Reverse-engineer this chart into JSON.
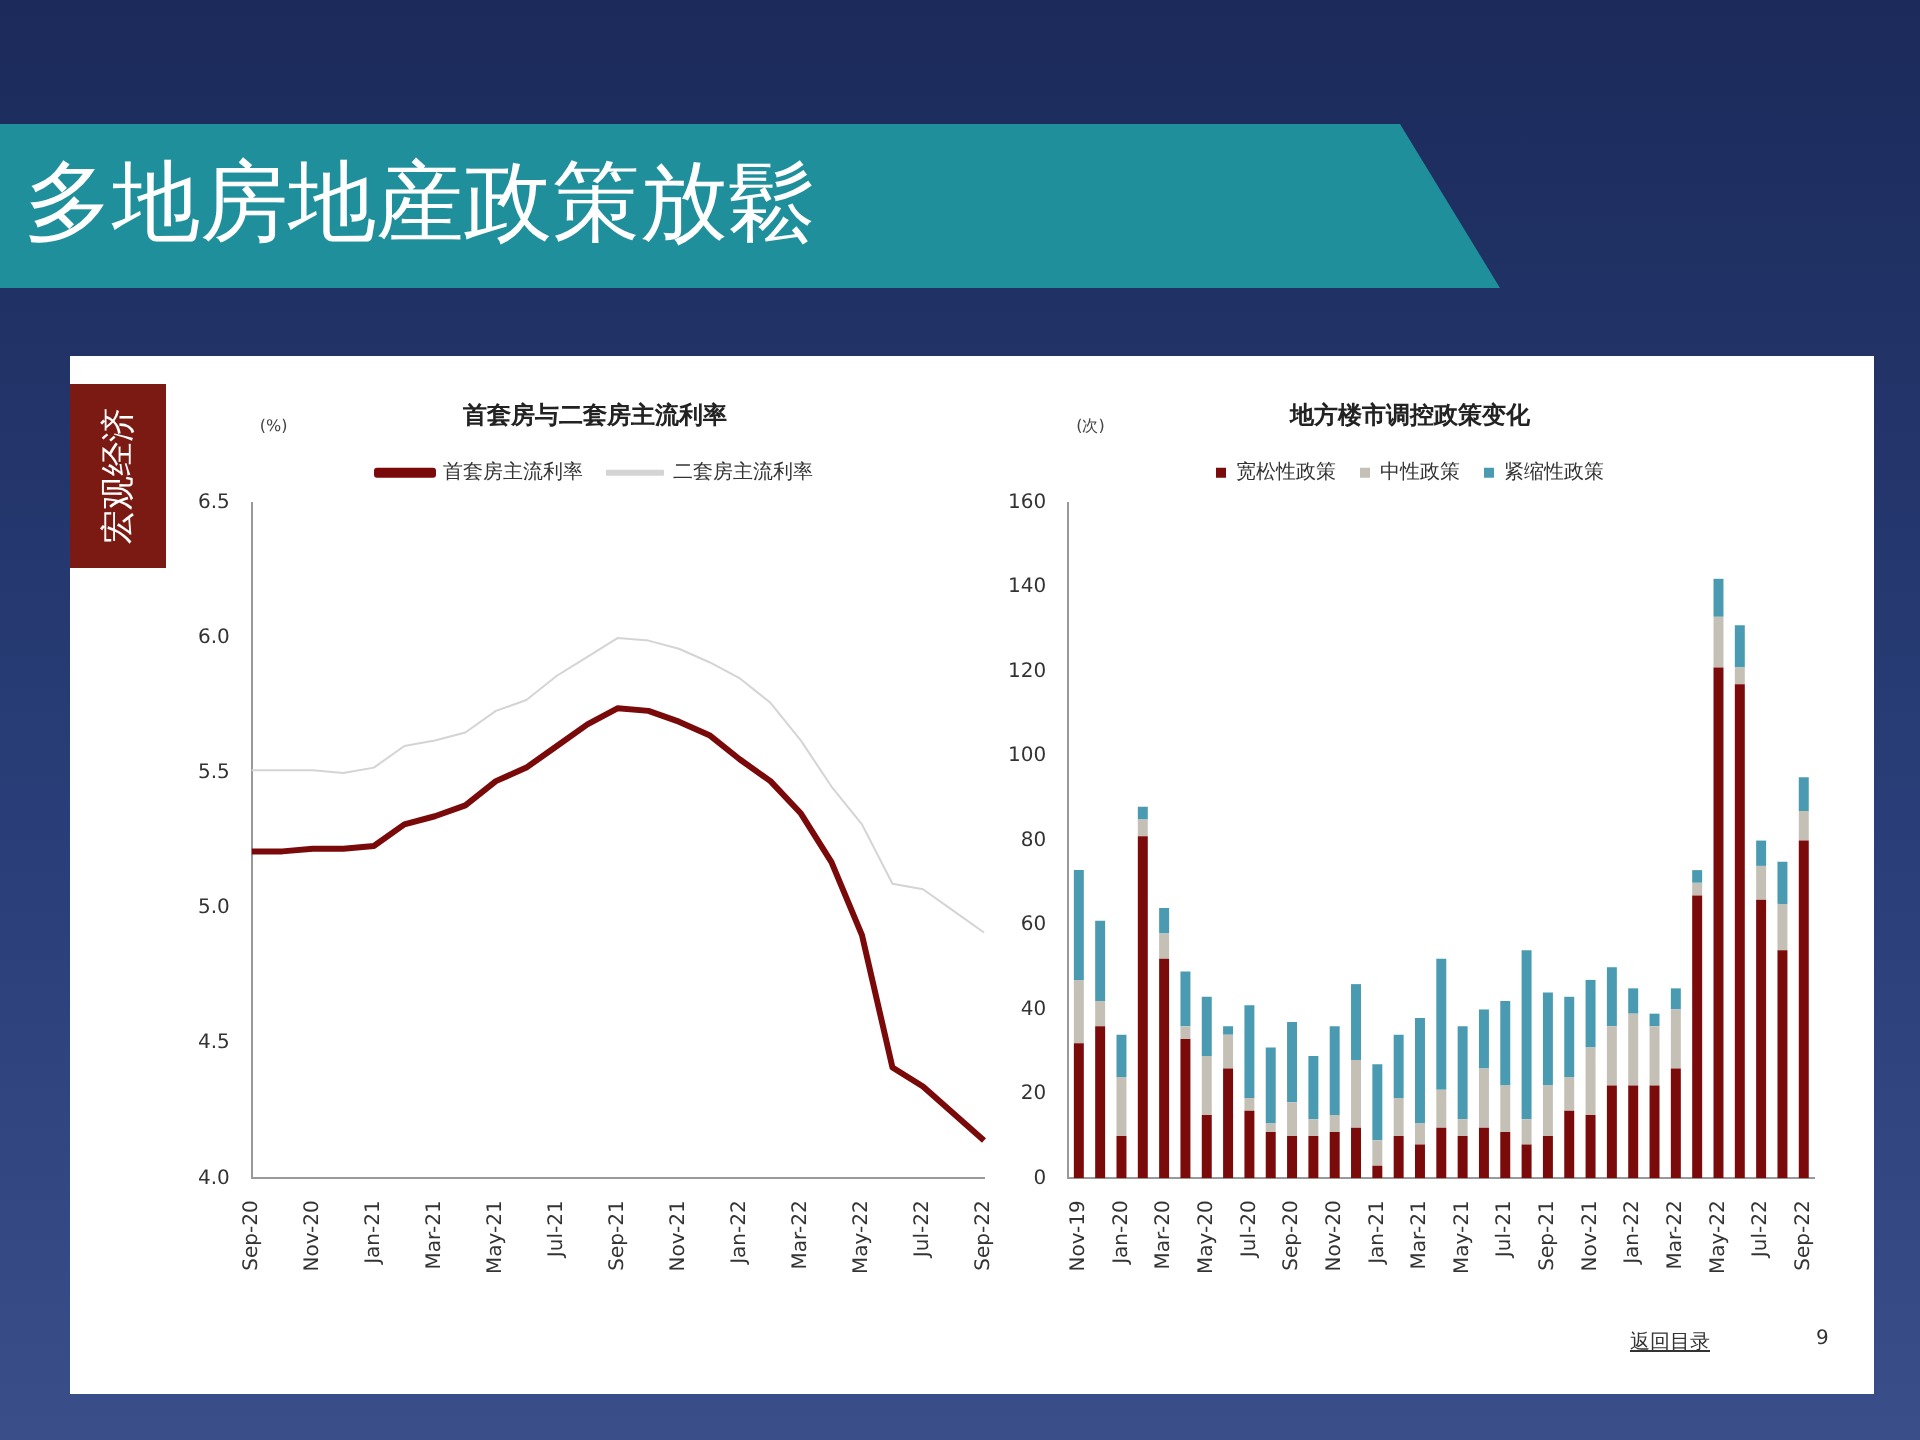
{
  "chart_data": [
    {
      "type": "line",
      "title": "首套房与二套房主流利率",
      "ylabel": "(%)",
      "annotations": [
        "多地房地産政策放鬆",
        "宏观经济"
      ],
      "categories": [
        "Sep-20",
        null,
        "Nov-20",
        null,
        "Jan-21",
        null,
        "Mar-21",
        null,
        "May-21",
        null,
        "Jul-21",
        null,
        "Sep-21",
        null,
        "Nov-21",
        null,
        "Jan-22",
        null,
        "Mar-22",
        null,
        "May-22",
        null,
        "Jul-22",
        null,
        "Sep-22"
      ],
      "series": [
        {
          "name": "首套房主流利率",
          "color": "#7a0a0a",
          "values": [
            5.21,
            5.21,
            5.22,
            5.22,
            5.23,
            5.31,
            5.34,
            5.38,
            5.47,
            5.52,
            5.6,
            5.68,
            5.74,
            5.73,
            5.69,
            5.64,
            5.55,
            5.47,
            5.35,
            5.17,
            4.9,
            4.41,
            4.34,
            4.24,
            4.14
          ]
        },
        {
          "name": "二套房主流利率",
          "color": "#d4d4d4",
          "values": [
            5.51,
            5.51,
            5.51,
            5.5,
            5.52,
            5.6,
            5.62,
            5.65,
            5.73,
            5.77,
            5.86,
            5.93,
            6.0,
            5.99,
            5.96,
            5.91,
            5.85,
            5.76,
            5.62,
            5.45,
            5.31,
            5.09,
            5.07,
            4.99,
            4.91
          ]
        }
      ],
      "ylim": [
        4,
        6.5
      ],
      "yticks": [
        {
          "value": 4,
          "label": "4.0"
        },
        {
          "value": 4.5,
          "label": "4.5"
        },
        {
          "value": 5,
          "label": "5.0"
        },
        {
          "value": 5.5,
          "label": "5.5"
        },
        {
          "value": 6,
          "label": "6.0"
        },
        {
          "value": 6.5,
          "label": "6.5"
        }
      ],
      "grid": false,
      "legend": "top",
      "marker": "none",
      "line_style": "solid"
    },
    {
      "type": "bar",
      "title": "地方楼市调控政策变化",
      "ylabel": "(次)",
      "annotations": [
        "返回目录",
        "9"
      ],
      "categories": [
        "Nov-19",
        null,
        "Jan-20",
        null,
        "Mar-20",
        null,
        "May-20",
        null,
        "Jul-20",
        null,
        "Sep-20",
        null,
        "Nov-20",
        null,
        "Jan-21",
        null,
        "Mar-21",
        null,
        "May-21",
        null,
        "Jul-21",
        null,
        "Sep-21",
        null,
        "Nov-21",
        null,
        "Jan-22",
        null,
        "Mar-22",
        null,
        "May-22",
        null,
        "Jul-22",
        null,
        "Sep-22"
      ],
      "stacked": true,
      "series": [
        {
          "name": "宽松性政策",
          "color": "#7b0a0a",
          "values": [
            32,
            36,
            10,
            81,
            52,
            33,
            15,
            26,
            16,
            11,
            10,
            10,
            11,
            12,
            3,
            10,
            8,
            12,
            10,
            12,
            11,
            8,
            10,
            16,
            15,
            22,
            22,
            22,
            26,
            67,
            121,
            117,
            66,
            54,
            80
          ]
        },
        {
          "name": "中性政策",
          "color": "#c5c0b5",
          "values": [
            15,
            6,
            14,
            4,
            6,
            3,
            14,
            8,
            3,
            2,
            8,
            4,
            4,
            16,
            6,
            9,
            5,
            9,
            4,
            14,
            11,
            6,
            12,
            8,
            16,
            14,
            17,
            14,
            14,
            3,
            12,
            4,
            8,
            11,
            7
          ]
        },
        {
          "name": "紧缩性政策",
          "color": "#4a9bb2",
          "values": [
            26,
            19,
            10,
            3,
            6,
            13,
            14,
            2,
            22,
            18,
            19,
            15,
            21,
            18,
            18,
            15,
            25,
            31,
            22,
            14,
            20,
            40,
            22,
            19,
            16,
            14,
            6,
            3,
            5,
            3,
            9,
            10,
            6,
            10,
            8
          ]
        }
      ],
      "ylim": [
        0,
        160
      ],
      "yticks": [
        0,
        20,
        40,
        60,
        80,
        100,
        120,
        140,
        160
      ],
      "grid": false,
      "legend": "top"
    }
  ]
}
